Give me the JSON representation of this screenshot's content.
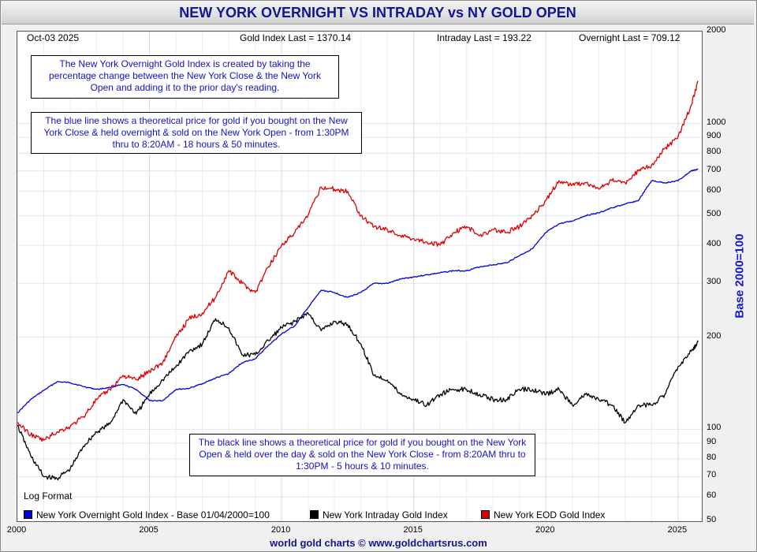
{
  "title": "NEW YORK OVERNIGHT VS INTRADAY vs NY GOLD OPEN",
  "header": {
    "date": "Oct-03  2025",
    "gold_last": "Gold Index Last = 1370.14",
    "intraday_last": "Intraday Last = 193.22",
    "overnight_last": "Overnight Last = 709.12"
  },
  "notes": {
    "overnight_definition": "The New York Overnight Gold Index is created by taking the percentage change between the New York Close & the New York Open and adding it to the prior day's reading.",
    "blue_line": "The blue line shows a theoretical price for gold if you bought on the New York Close & held overnight & sold on the New York Open - from 1:30PM thru to 8:20AM - 18 hours & 50 minutes.",
    "black_line": "The black line shows a theoretical price for gold if you bought on the New York Open & held over the day & sold on the New York Close - from 8:20AM thru to 1:30PM - 5 hours & 10 minutes."
  },
  "log_format_label": "Log Format",
  "footer": "world gold charts © www.goldchartsrus.com",
  "chart_data": {
    "type": "line",
    "title": "NEW YORK OVERNIGHT VS INTRADAY vs NY GOLD OPEN",
    "xlabel": "",
    "ylabel": "Base 2000=100",
    "y_scale": "log",
    "ylim": [
      50,
      2000
    ],
    "xlim": [
      2000,
      2025.9
    ],
    "x_ticks": [
      "2000",
      "2005",
      "2010",
      "2015",
      "2020",
      "2025"
    ],
    "y_ticks": [
      "2000",
      "1000",
      "900",
      "800",
      "700",
      "600",
      "500",
      "400",
      "300",
      "200",
      "100",
      "90",
      "80",
      "70",
      "60",
      "50"
    ],
    "grid": true,
    "legend_position": "bottom",
    "series": [
      {
        "name": "New York Overnight Gold Index - Base 01/04/2000=100",
        "color": "#0000dd",
        "x": [
          2000.0,
          2000.5,
          2001.0,
          2001.5,
          2002.0,
          2002.5,
          2003.0,
          2003.5,
          2004.0,
          2004.5,
          2005.0,
          2005.5,
          2006.0,
          2006.5,
          2007.0,
          2007.5,
          2008.0,
          2008.5,
          2009.0,
          2009.5,
          2010.0,
          2010.5,
          2011.0,
          2011.5,
          2012.0,
          2012.5,
          2013.0,
          2013.5,
          2014.0,
          2014.5,
          2015.0,
          2015.5,
          2016.0,
          2016.5,
          2017.0,
          2017.5,
          2018.0,
          2018.5,
          2019.0,
          2019.5,
          2020.0,
          2020.5,
          2021.0,
          2021.5,
          2022.0,
          2022.5,
          2023.0,
          2023.5,
          2024.0,
          2024.5,
          2025.0,
          2025.5,
          2025.76
        ],
        "values": [
          113,
          125,
          134,
          143,
          142,
          138,
          135,
          137,
          140,
          135,
          124,
          124,
          135,
          136,
          141,
          147,
          152,
          165,
          170,
          188,
          205,
          218,
          250,
          285,
          280,
          270,
          280,
          300,
          300,
          310,
          315,
          320,
          325,
          330,
          330,
          340,
          345,
          350,
          370,
          390,
          440,
          470,
          480,
          500,
          510,
          530,
          545,
          560,
          650,
          640,
          650,
          700,
          709
        ]
      },
      {
        "name": "New York Intraday Gold Index",
        "color": "#000000",
        "x": [
          2000.0,
          2000.5,
          2001.0,
          2001.5,
          2002.0,
          2002.5,
          2003.0,
          2003.5,
          2004.0,
          2004.5,
          2005.0,
          2005.5,
          2006.0,
          2006.5,
          2007.0,
          2007.5,
          2008.0,
          2008.5,
          2009.0,
          2009.5,
          2010.0,
          2010.5,
          2011.0,
          2011.5,
          2012.0,
          2012.5,
          2013.0,
          2013.5,
          2014.0,
          2014.5,
          2015.0,
          2015.5,
          2016.0,
          2016.5,
          2017.0,
          2017.5,
          2018.0,
          2018.5,
          2019.0,
          2019.5,
          2020.0,
          2020.5,
          2021.0,
          2021.5,
          2022.0,
          2022.5,
          2023.0,
          2023.5,
          2024.0,
          2024.5,
          2025.0,
          2025.5,
          2025.76
        ],
        "values": [
          103,
          82,
          70,
          69,
          74,
          88,
          98,
          104,
          125,
          112,
          130,
          145,
          160,
          180,
          190,
          230,
          215,
          175,
          175,
          195,
          215,
          225,
          240,
          210,
          225,
          220,
          190,
          150,
          145,
          130,
          125,
          120,
          130,
          135,
          135,
          130,
          125,
          125,
          135,
          135,
          130,
          135,
          120,
          130,
          125,
          120,
          105,
          120,
          120,
          130,
          160,
          180,
          193
        ]
      },
      {
        "name": "New York EOD Gold Index",
        "color": "#dd0000",
        "x": [
          2000.0,
          2000.5,
          2001.0,
          2001.5,
          2002.0,
          2002.5,
          2003.0,
          2003.5,
          2004.0,
          2004.5,
          2005.0,
          2005.5,
          2006.0,
          2006.5,
          2007.0,
          2007.5,
          2008.0,
          2008.5,
          2009.0,
          2009.5,
          2010.0,
          2010.5,
          2011.0,
          2011.5,
          2012.0,
          2012.5,
          2013.0,
          2013.5,
          2014.0,
          2014.5,
          2015.0,
          2015.5,
          2016.0,
          2016.5,
          2017.0,
          2017.5,
          2018.0,
          2018.5,
          2019.0,
          2019.5,
          2020.0,
          2020.5,
          2021.0,
          2021.5,
          2022.0,
          2022.5,
          2023.0,
          2023.5,
          2024.0,
          2024.5,
          2025.0,
          2025.5,
          2025.76
        ],
        "values": [
          105,
          96,
          92,
          98,
          102,
          110,
          125,
          135,
          150,
          145,
          155,
          165,
          200,
          230,
          240,
          270,
          330,
          300,
          280,
          340,
          400,
          440,
          500,
          620,
          610,
          600,
          500,
          460,
          450,
          430,
          420,
          410,
          400,
          440,
          460,
          430,
          450,
          440,
          460,
          500,
          560,
          650,
          630,
          640,
          610,
          650,
          640,
          700,
          730,
          830,
          900,
          1150,
          1370
        ]
      }
    ]
  }
}
